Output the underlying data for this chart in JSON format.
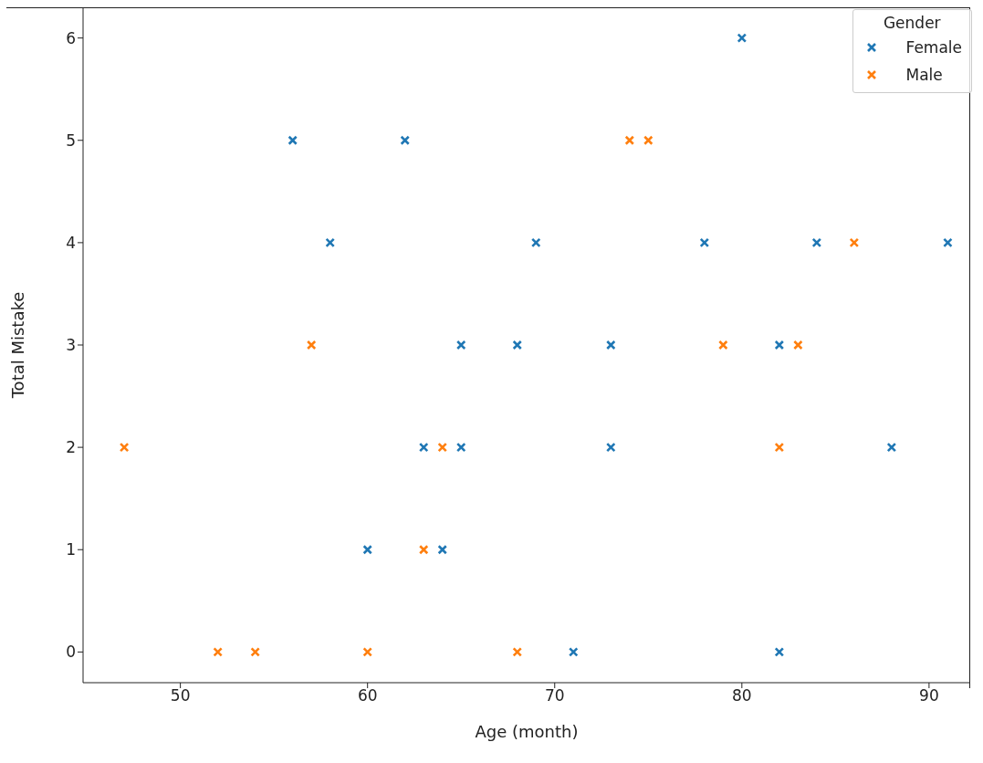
{
  "chart_data": {
    "type": "scatter",
    "xlabel": "Age (month)",
    "ylabel": "Total Mistake",
    "legend_title": "Gender",
    "legend": "top right",
    "marker": "cross",
    "grid": false,
    "xlim": [
      44.8,
      92.2
    ],
    "xticks": [
      50,
      60,
      70,
      80,
      90
    ],
    "ylim": [
      -0.3,
      6.3
    ],
    "yticks": [
      0,
      1,
      2,
      3,
      4,
      5,
      6
    ],
    "series": [
      {
        "name": "Female",
        "color": "#1f77b4",
        "x": [
          56,
          58,
          62,
          60,
          64,
          63,
          65,
          65,
          68,
          69,
          73,
          73,
          71,
          78,
          80,
          82,
          82,
          84,
          88,
          91
        ],
        "values": [
          5,
          4,
          5,
          1,
          1,
          2,
          2,
          3,
          3,
          4,
          3,
          2,
          0,
          4,
          6,
          3,
          0,
          4,
          2,
          4
        ]
      },
      {
        "name": "Male",
        "color": "#ff7f0e",
        "x": [
          47,
          52,
          54,
          57,
          60,
          63,
          64,
          68,
          74,
          75,
          79,
          82,
          83,
          86
        ],
        "values": [
          2,
          0,
          0,
          3,
          0,
          1,
          2,
          0,
          5,
          5,
          3,
          2,
          3,
          4
        ]
      }
    ]
  }
}
